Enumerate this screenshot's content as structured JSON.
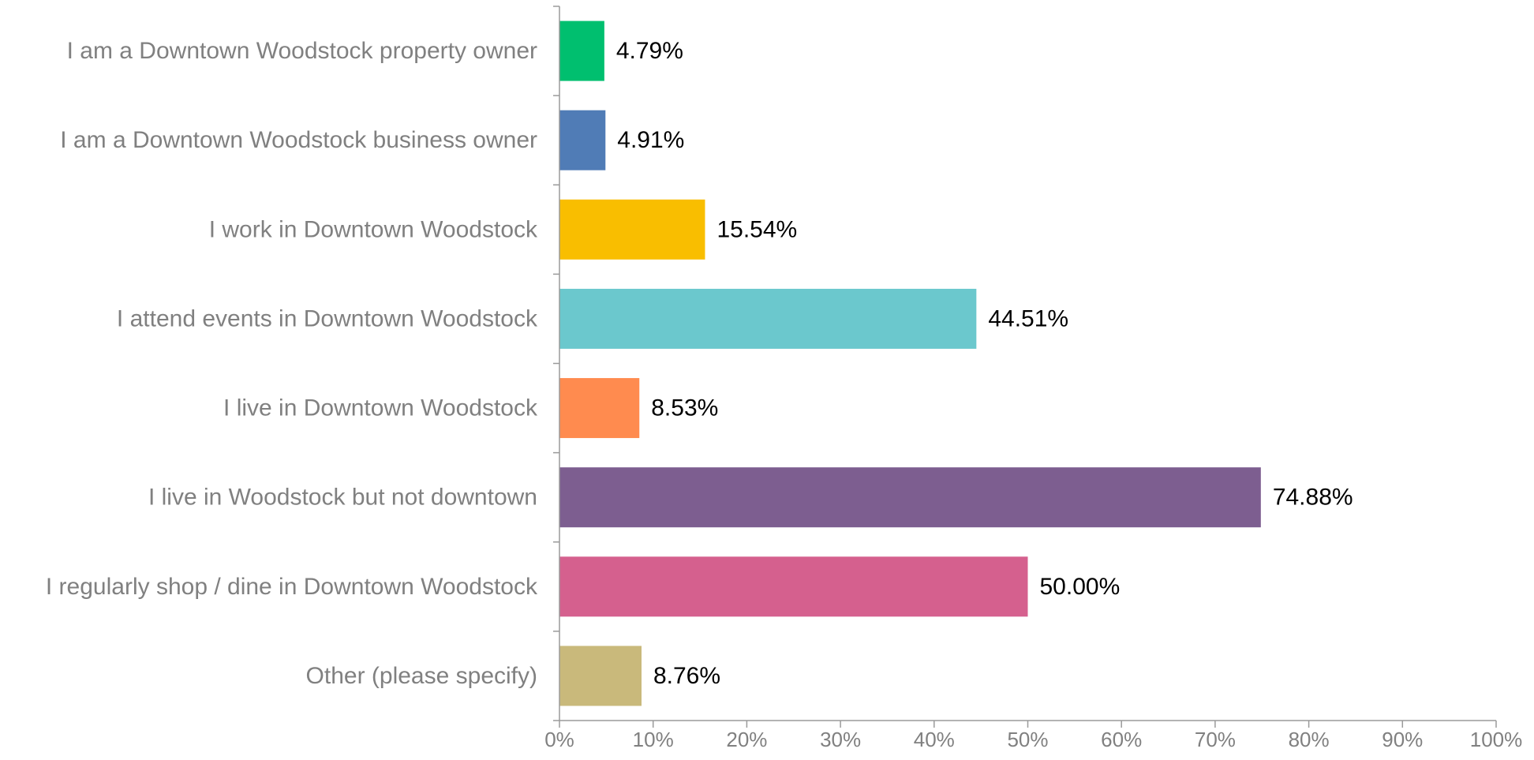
{
  "chart_data": {
    "type": "bar",
    "orientation": "horizontal",
    "categories": [
      "I am a Downtown Woodstock property owner",
      "I am a Downtown Woodstock business owner",
      "I work in Downtown Woodstock",
      "I attend events in Downtown Woodstock",
      "I live in Downtown Woodstock",
      "I live in Woodstock but not downtown",
      "I regularly shop / dine in Downtown Woodstock",
      "Other (please specify)"
    ],
    "values": [
      4.79,
      4.91,
      15.54,
      44.51,
      8.53,
      74.88,
      50.0,
      8.76
    ],
    "data_labels": [
      "4.79%",
      "4.91%",
      "15.54%",
      "44.51%",
      "8.53%",
      "74.88%",
      "50.00%",
      "8.76%"
    ],
    "colors": [
      "#00BF6F",
      "#507CB6",
      "#F9BE00",
      "#6BC8CD",
      "#FF8B4F",
      "#7D5E90",
      "#D5608E",
      "#C9B97B"
    ],
    "xlim": [
      0,
      100
    ],
    "x_ticks": [
      0,
      10,
      20,
      30,
      40,
      50,
      60,
      70,
      80,
      90,
      100
    ],
    "x_tick_labels": [
      "0%",
      "10%",
      "20%",
      "30%",
      "40%",
      "50%",
      "60%",
      "70%",
      "80%",
      "90%",
      "100%"
    ],
    "grid": false,
    "title": "",
    "xlabel": "",
    "ylabel": ""
  }
}
